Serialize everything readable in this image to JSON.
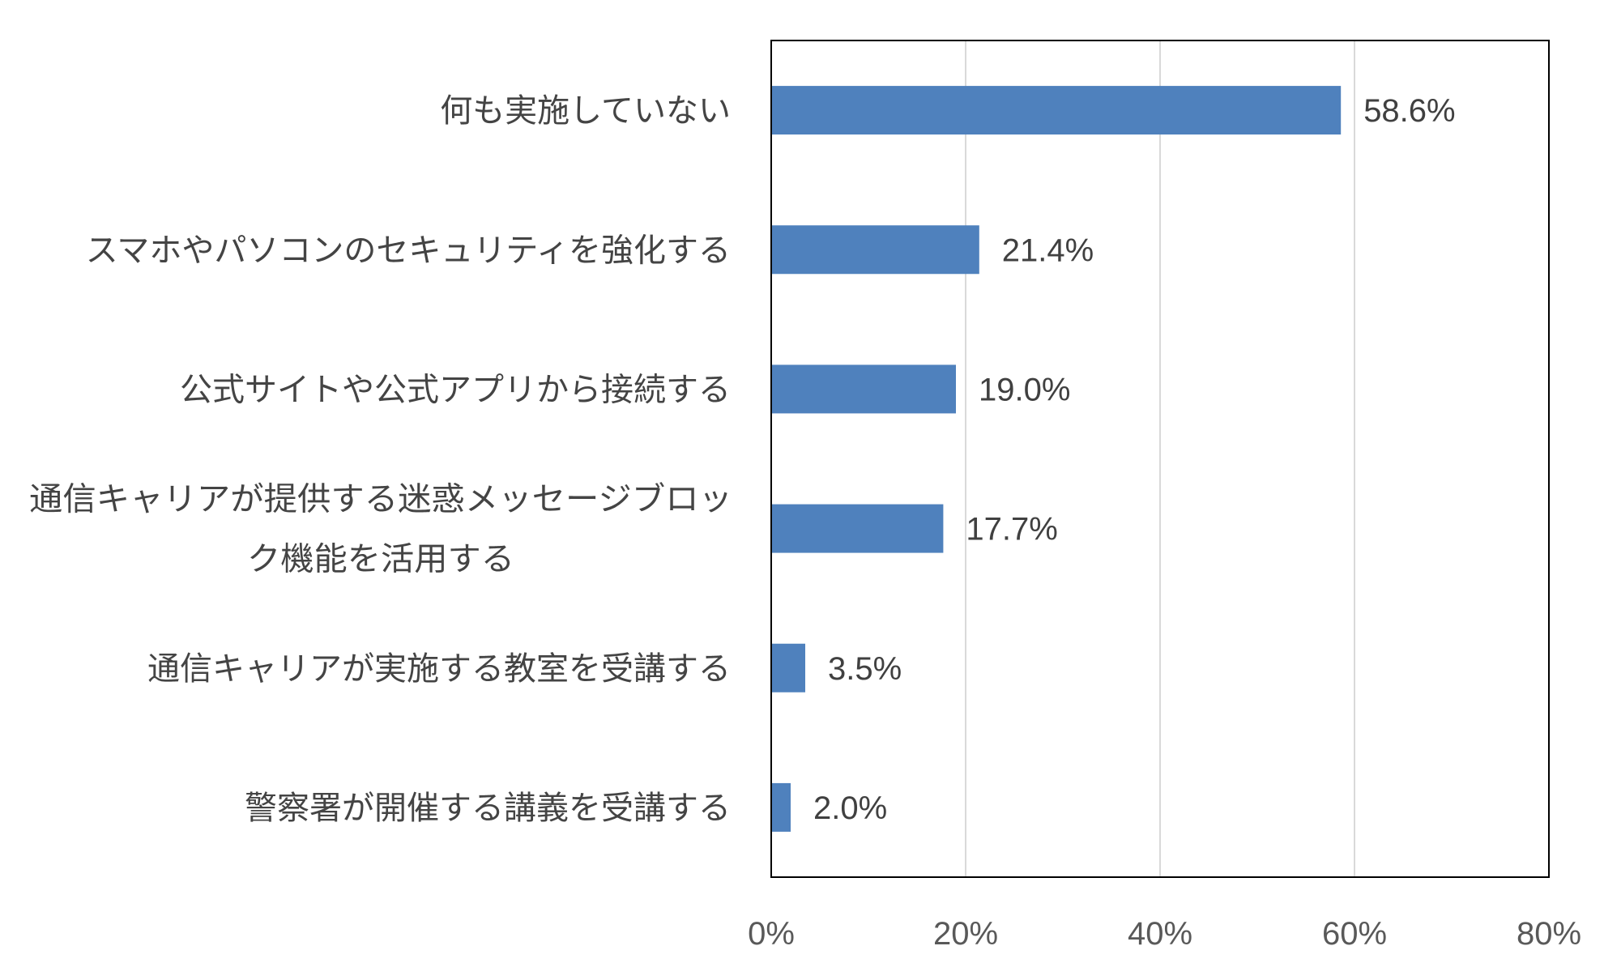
{
  "chart_data": {
    "type": "bar",
    "orientation": "horizontal",
    "categories": [
      [
        "何も実施していない"
      ],
      [
        "スマホやパソコンのセキュリティを強化する"
      ],
      [
        "公式サイトや公式アプリから接続する"
      ],
      [
        "通信キャリアが提供する迷惑メッセージブロッ",
        "ク機能を活用する"
      ],
      [
        "通信キャリアが実施する教室を受講する"
      ],
      [
        "警察署が開催する講義を受講する"
      ]
    ],
    "values": [
      58.6,
      21.4,
      19.0,
      17.7,
      3.5,
      2.0
    ],
    "value_labels": [
      "58.6%",
      "21.4%",
      "19.0%",
      "17.7%",
      "3.5%",
      "2.0%"
    ],
    "x_ticks": [
      "0%",
      "20%",
      "40%",
      "60%",
      "80%"
    ],
    "xlim": [
      0,
      80
    ],
    "grid": "vertical",
    "legend": "none",
    "bar_color": "#4f81bd",
    "grid_color": "#d9d9d9",
    "frame_color": "#000000"
  }
}
